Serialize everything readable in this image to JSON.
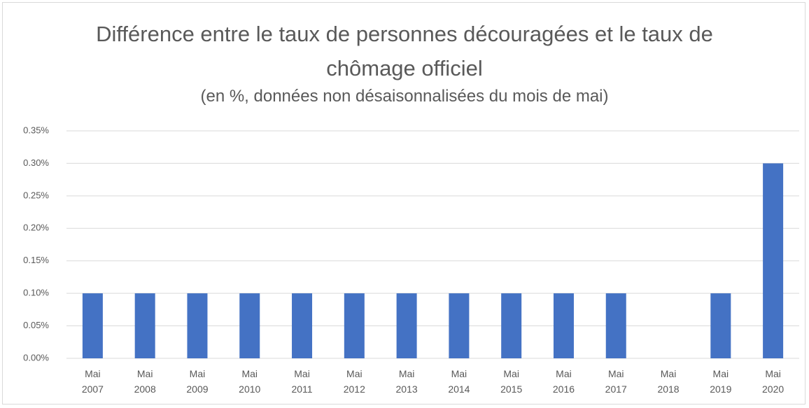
{
  "chart_data": {
    "type": "bar",
    "title": "Différence entre le taux de personnes découragées et le taux de chômage officiel",
    "subtitle": "(en %, données non désaisonnalisées du mois de mai)",
    "categories": [
      "Mai 2007",
      "Mai 2008",
      "Mai 2009",
      "Mai 2010",
      "Mai 2011",
      "Mai 2012",
      "Mai 2013",
      "Mai 2014",
      "Mai 2015",
      "Mai 2016",
      "Mai 2017",
      "Mai 2018",
      "Mai 2019",
      "Mai 2020"
    ],
    "values": [
      0.1,
      0.1,
      0.1,
      0.1,
      0.1,
      0.1,
      0.1,
      0.1,
      0.1,
      0.1,
      0.1,
      0,
      0.1,
      0.3
    ],
    "color": "#4472c4",
    "ylim": [
      0,
      0.35
    ],
    "yticks": [
      {
        "value": 0,
        "label": "0.00%"
      },
      {
        "value": 0.05,
        "label": "0.05%"
      },
      {
        "value": 0.1,
        "label": "0.10%"
      },
      {
        "value": 0.15,
        "label": "0.15%"
      },
      {
        "value": 0.2,
        "label": "0.20%"
      },
      {
        "value": 0.25,
        "label": "0.25%"
      },
      {
        "value": 0.3,
        "label": "0.30%"
      },
      {
        "value": 0.35,
        "label": "0.35%"
      }
    ],
    "grid": true
  }
}
